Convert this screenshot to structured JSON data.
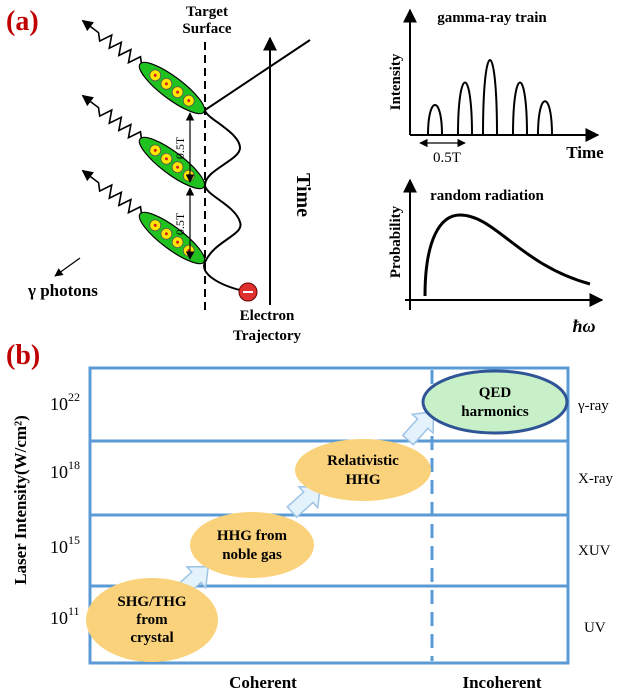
{
  "panel_a": {
    "label": "(a)",
    "target_surface": [
      "Target",
      "Surface"
    ],
    "period_labels": [
      "0.5T",
      "0.5T"
    ],
    "time_axis": "Time",
    "photons_label": "γ photons",
    "electron_label": [
      "Electron",
      "Trajectory"
    ],
    "train_plot": {
      "title": "gamma-ray train",
      "y_label": "Intensity",
      "spacing_label": "0.5T",
      "x_label": "Time"
    },
    "random_plot": {
      "title": "random radiation",
      "y_label": "Probability",
      "x_label": "ħω"
    }
  },
  "panel_b": {
    "label": "(b)",
    "y_label": "Laser Intensity(W/cm²)",
    "intensity_ticks": [
      {
        "base": "10",
        "exponent": "22"
      },
      {
        "base": "10",
        "exponent": "18"
      },
      {
        "base": "10",
        "exponent": "15"
      },
      {
        "base": "10",
        "exponent": "11"
      }
    ],
    "bands": [
      "γ-ray",
      "X-ray",
      "XUV",
      "UV"
    ],
    "processes": [
      [
        "SHG/THG",
        "from",
        "crystal"
      ],
      [
        "HHG from",
        "noble gas"
      ],
      [
        "Relativistic",
        "HHG"
      ],
      [
        "QED",
        "harmonics"
      ]
    ],
    "regimes": [
      "Coherent",
      "Incoherent"
    ]
  }
}
